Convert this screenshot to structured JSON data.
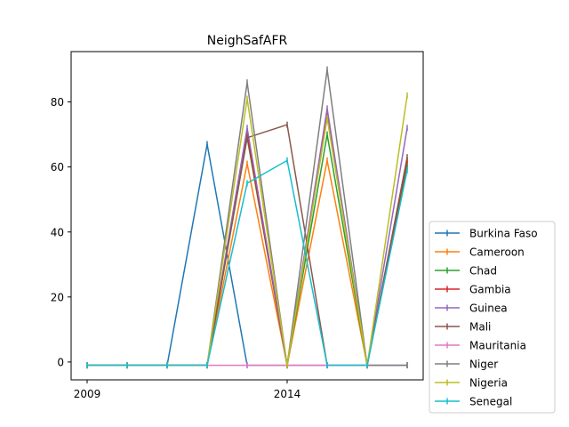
{
  "chart_data": {
    "type": "line",
    "title": "NeighSafAFR",
    "xlabel": "",
    "ylabel": "",
    "x": [
      2009,
      2010,
      2011,
      2012,
      2013,
      2014,
      2015,
      2016,
      2017
    ],
    "xticks": [
      2009,
      2014
    ],
    "yticks": [
      0,
      20,
      40,
      60,
      80
    ],
    "xlim": [
      2008.6,
      2017.4
    ],
    "ylim": [
      -5.5,
      95.5
    ],
    "grid": false,
    "legend_position": "lower-right-outside",
    "series": [
      {
        "name": "Burkina Faso",
        "color": "#1f77b4",
        "values": [
          -1,
          -1,
          -1,
          67,
          -1,
          -1,
          -1,
          -1,
          -1
        ]
      },
      {
        "name": "Cameroon",
        "color": "#ff7f0e",
        "values": [
          -1,
          -1,
          -1,
          -1,
          61,
          -1,
          62,
          -1,
          61
        ]
      },
      {
        "name": "Chad",
        "color": "#2ca02c",
        "values": [
          -1,
          -1,
          -1,
          -1,
          69,
          -1,
          70,
          -1,
          60
        ]
      },
      {
        "name": "Gambia",
        "color": "#d62728",
        "values": [
          -1,
          -1,
          -1,
          -1,
          70,
          -1,
          76,
          -1,
          62
        ]
      },
      {
        "name": "Guinea",
        "color": "#9467bd",
        "values": [
          -1,
          -1,
          -1,
          -1,
          72,
          -1,
          78,
          -1,
          72
        ]
      },
      {
        "name": "Mali",
        "color": "#8c564b",
        "values": [
          -1,
          -1,
          -1,
          -1,
          69,
          73,
          -1,
          -1,
          63
        ]
      },
      {
        "name": "Mauritania",
        "color": "#e377c2",
        "values": [
          -1,
          -1,
          -1,
          -1,
          -1,
          -1,
          -1,
          -1,
          -1
        ]
      },
      {
        "name": "Niger",
        "color": "#7f7f7f",
        "values": [
          -1,
          -1,
          -1,
          -1,
          86,
          -1,
          90,
          -1,
          -1
        ]
      },
      {
        "name": "Nigeria",
        "color": "#bcbd22",
        "values": [
          -1,
          -1,
          -1,
          -1,
          81,
          -1,
          75,
          -1,
          82
        ]
      },
      {
        "name": "Senegal",
        "color": "#17becf",
        "values": [
          -1,
          -1,
          -1,
          -1,
          55,
          62,
          -1,
          -1,
          59
        ]
      }
    ]
  }
}
